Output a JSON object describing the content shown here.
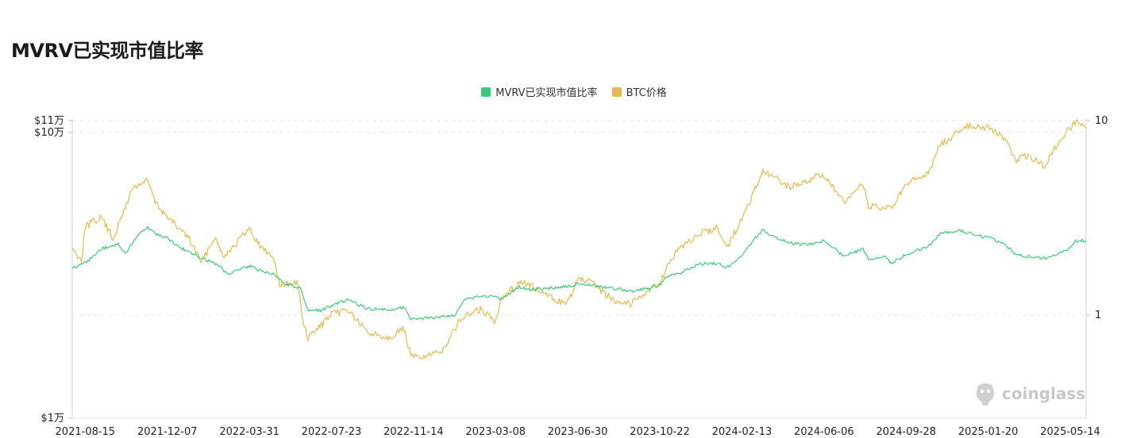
{
  "page": {
    "title": "MVRV已实现市值比率"
  },
  "watermark": {
    "text": "coinglass"
  },
  "legend": [
    {
      "label": "MVRV已实现市值比率",
      "color": "#3ec97a"
    },
    {
      "label": "BTC价格",
      "color": "#e5b94f"
    }
  ],
  "chart_data": {
    "type": "line",
    "title": "MVRV已实现市值比率",
    "x_tick_labels": [
      "2021-08-15",
      "2021-12-07",
      "2022-03-31",
      "2022-07-23",
      "2022-11-14",
      "2023-03-08",
      "2023-06-30",
      "2023-10-22",
      "2024-02-13",
      "2024-06-06",
      "2024-09-28",
      "2025-01-20",
      "2025-05-14"
    ],
    "x_range": [
      "2021-07-28",
      "2025-06-05"
    ],
    "y_left": {
      "scale": "log",
      "range": [
        10000,
        110000
      ],
      "tick_labels": [
        "$1万",
        "$10万",
        "$11万"
      ],
      "tick_values": [
        10000,
        100000,
        110000
      ]
    },
    "y_right": {
      "scale": "log",
      "range": [
        0.295,
        10
      ],
      "tick_labels": [
        "1",
        "10"
      ],
      "tick_values": [
        1,
        10
      ]
    },
    "grid": true,
    "legend_position": "top-center",
    "series": [
      {
        "name": "MVRV已实现市值比率",
        "axis": "right",
        "color": "#3ec97a",
        "points": [
          [
            "2021-07-28",
            1.73
          ],
          [
            "2021-08-15",
            1.85
          ],
          [
            "2021-09-07",
            2.2
          ],
          [
            "2021-09-30",
            2.32
          ],
          [
            "2021-10-10",
            2.05
          ],
          [
            "2021-10-25",
            2.55
          ],
          [
            "2021-11-10",
            2.82
          ],
          [
            "2021-11-25",
            2.58
          ],
          [
            "2021-12-07",
            2.5
          ],
          [
            "2021-12-20",
            2.28
          ],
          [
            "2022-01-05",
            2.12
          ],
          [
            "2022-01-25",
            1.95
          ],
          [
            "2022-02-15",
            1.82
          ],
          [
            "2022-03-01",
            1.62
          ],
          [
            "2022-03-31",
            1.78
          ],
          [
            "2022-04-15",
            1.7
          ],
          [
            "2022-05-05",
            1.62
          ],
          [
            "2022-05-20",
            1.45
          ],
          [
            "2022-06-10",
            1.38
          ],
          [
            "2022-06-20",
            1.06
          ],
          [
            "2022-07-10",
            1.06
          ],
          [
            "2022-07-23",
            1.12
          ],
          [
            "2022-08-15",
            1.2
          ],
          [
            "2022-09-10",
            1.08
          ],
          [
            "2022-10-10",
            1.06
          ],
          [
            "2022-11-01",
            1.1
          ],
          [
            "2022-11-09",
            0.96
          ],
          [
            "2022-11-14",
            0.95
          ],
          [
            "2022-12-20",
            0.98
          ],
          [
            "2023-01-10",
            0.99
          ],
          [
            "2023-01-25",
            1.22
          ],
          [
            "2023-03-08",
            1.25
          ],
          [
            "2023-03-15",
            1.2
          ],
          [
            "2023-04-10",
            1.4
          ],
          [
            "2023-04-25",
            1.35
          ],
          [
            "2023-06-15",
            1.4
          ],
          [
            "2023-06-30",
            1.45
          ],
          [
            "2023-08-17",
            1.38
          ],
          [
            "2023-09-15",
            1.32
          ],
          [
            "2023-10-22",
            1.42
          ],
          [
            "2023-10-30",
            1.58
          ],
          [
            "2023-11-20",
            1.65
          ],
          [
            "2023-12-15",
            1.82
          ],
          [
            "2024-01-10",
            1.85
          ],
          [
            "2024-01-23",
            1.75
          ],
          [
            "2024-02-13",
            2.05
          ],
          [
            "2024-03-01",
            2.45
          ],
          [
            "2024-03-13",
            2.72
          ],
          [
            "2024-04-01",
            2.5
          ],
          [
            "2024-04-20",
            2.35
          ],
          [
            "2024-05-10",
            2.3
          ],
          [
            "2024-06-06",
            2.4
          ],
          [
            "2024-07-05",
            2.0
          ],
          [
            "2024-07-30",
            2.2
          ],
          [
            "2024-08-07",
            1.92
          ],
          [
            "2024-08-30",
            2.0
          ],
          [
            "2024-09-07",
            1.85
          ],
          [
            "2024-09-28",
            2.05
          ],
          [
            "2024-10-29",
            2.25
          ],
          [
            "2024-11-13",
            2.6
          ],
          [
            "2024-12-05",
            2.72
          ],
          [
            "2024-12-17",
            2.68
          ],
          [
            "2025-01-20",
            2.5
          ],
          [
            "2025-02-10",
            2.35
          ],
          [
            "2025-02-28",
            2.05
          ],
          [
            "2025-03-15",
            2.0
          ],
          [
            "2025-04-08",
            1.95
          ],
          [
            "2025-05-14",
            2.2
          ],
          [
            "2025-05-22",
            2.4
          ],
          [
            "2025-06-05",
            2.42
          ]
        ]
      },
      {
        "name": "BTC价格",
        "axis": "left",
        "color": "#e5b94f",
        "points": [
          [
            "2021-07-28",
            39500
          ],
          [
            "2021-08-01",
            38000
          ],
          [
            "2021-08-10",
            36000
          ],
          [
            "2021-08-15",
            47000
          ],
          [
            "2021-08-25",
            48500
          ],
          [
            "2021-09-07",
            50500
          ],
          [
            "2021-09-22",
            42500
          ],
          [
            "2021-09-30",
            47000
          ],
          [
            "2021-10-10",
            55000
          ],
          [
            "2021-10-20",
            64000
          ],
          [
            "2021-11-10",
            68000
          ],
          [
            "2021-11-20",
            57000
          ],
          [
            "2021-12-07",
            50500
          ],
          [
            "2021-12-20",
            47000
          ],
          [
            "2022-01-05",
            43000
          ],
          [
            "2022-01-24",
            35000
          ],
          [
            "2022-02-10",
            43000
          ],
          [
            "2022-02-24",
            37000
          ],
          [
            "2022-03-31",
            46000
          ],
          [
            "2022-04-15",
            40000
          ],
          [
            "2022-05-05",
            36000
          ],
          [
            "2022-05-12",
            29000
          ],
          [
            "2022-06-05",
            30000
          ],
          [
            "2022-06-15",
            21000
          ],
          [
            "2022-06-20",
            19000
          ],
          [
            "2022-07-23",
            23000
          ],
          [
            "2022-08-15",
            24000
          ],
          [
            "2022-09-10",
            20000
          ],
          [
            "2022-10-10",
            19200
          ],
          [
            "2022-11-01",
            20500
          ],
          [
            "2022-11-10",
            16500
          ],
          [
            "2022-11-14",
            16300
          ],
          [
            "2022-12-20",
            16800
          ],
          [
            "2023-01-20",
            22500
          ],
          [
            "2023-02-15",
            24000
          ],
          [
            "2023-03-08",
            21800
          ],
          [
            "2023-03-15",
            26500
          ],
          [
            "2023-04-14",
            30200
          ],
          [
            "2023-05-10",
            27500
          ],
          [
            "2023-06-15",
            25000
          ],
          [
            "2023-06-30",
            30500
          ],
          [
            "2023-07-15",
            30200
          ],
          [
            "2023-08-17",
            26000
          ],
          [
            "2023-09-11",
            25200
          ],
          [
            "2023-10-22",
            30000
          ],
          [
            "2023-11-10",
            37000
          ],
          [
            "2023-12-10",
            43500
          ],
          [
            "2024-01-10",
            46500
          ],
          [
            "2024-01-23",
            39500
          ],
          [
            "2024-02-13",
            49500
          ],
          [
            "2024-03-01",
            62000
          ],
          [
            "2024-03-13",
            72500
          ],
          [
            "2024-04-01",
            69000
          ],
          [
            "2024-04-20",
            64000
          ],
          [
            "2024-05-20",
            69000
          ],
          [
            "2024-06-06",
            71000
          ],
          [
            "2024-07-05",
            56000
          ],
          [
            "2024-07-30",
            67000
          ],
          [
            "2024-08-07",
            55000
          ],
          [
            "2024-09-07",
            54000
          ],
          [
            "2024-09-28",
            65500
          ],
          [
            "2024-10-29",
            72000
          ],
          [
            "2024-11-13",
            90000
          ],
          [
            "2024-12-05",
            98000
          ],
          [
            "2024-12-17",
            106000
          ],
          [
            "2025-01-20",
            104000
          ],
          [
            "2025-02-10",
            96000
          ],
          [
            "2025-02-28",
            80000
          ],
          [
            "2025-03-15",
            83000
          ],
          [
            "2025-04-08",
            76500
          ],
          [
            "2025-05-01",
            95000
          ],
          [
            "2025-05-14",
            103500
          ],
          [
            "2025-05-22",
            109500
          ],
          [
            "2025-06-05",
            104000
          ]
        ]
      }
    ]
  }
}
